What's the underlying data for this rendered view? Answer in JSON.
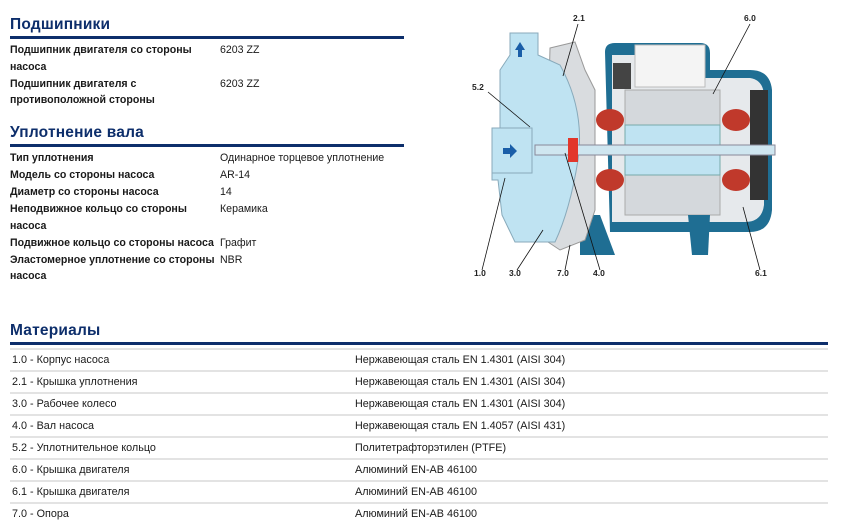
{
  "bearings": {
    "title": "Подшипники",
    "rows": [
      {
        "label": "Подшипник двигателя со стороны насоса",
        "value": "6203 ZZ"
      },
      {
        "label": "Подшипник двигателя с противоположной стороны",
        "value": "6203 ZZ"
      }
    ]
  },
  "shaft_seal": {
    "title": "Уплотнение вала",
    "rows": [
      {
        "label": "Тип уплотнения",
        "value": "Одинарное торцевое уплотнение"
      },
      {
        "label": "Модель со стороны насоса",
        "value": "AR-14"
      },
      {
        "label": "Диаметр со стороны насоса",
        "value": "14"
      },
      {
        "label": "Неподвижное кольцо со стороны насоса",
        "value": "Керамика"
      },
      {
        "label": "Подвижное кольцо со стороны насоса",
        "value": "Графит"
      },
      {
        "label": "Эластомерное уплотнение со стороны насоса",
        "value": "NBR"
      }
    ]
  },
  "materials": {
    "title": "Материалы",
    "rows": [
      {
        "part": "1.0 - Корпус насоса",
        "material": "Нержавеющая сталь EN 1.4301 (AISI 304)"
      },
      {
        "part": "2.1 - Крышка уплотнения",
        "material": "Нержавеющая сталь EN 1.4301 (AISI 304)"
      },
      {
        "part": "3.0 - Рабочее колесо",
        "material": "Нержавеющая сталь EN 1.4301 (AISI 304)"
      },
      {
        "part": "4.0 - Вал насоса",
        "material": "Нержавеющая сталь EN 1.4057 (AISI 431)"
      },
      {
        "part": "5.2 - Уплотнительное кольцо",
        "material": "Политетрафторэтилен (PTFE)"
      },
      {
        "part": "6.0 - Крышка двигателя",
        "material": "Алюминий EN-AB 46100"
      },
      {
        "part": "6.1 - Крышка двигателя",
        "material": "Алюминий EN-AB 46100"
      },
      {
        "part": "7.0 - Опора",
        "material": "Алюминий EN-AB 46100"
      }
    ]
  },
  "diagram": {
    "callouts": [
      "2.1",
      "6.0",
      "5.2",
      "1.0",
      "3.0",
      "7.0",
      "4.0",
      "6.1"
    ]
  },
  "colors": {
    "heading": "#0d2e6b",
    "pump_body": "#bfe3f2",
    "motor_casing": "#1f6e93",
    "winding": "#c0392b"
  }
}
